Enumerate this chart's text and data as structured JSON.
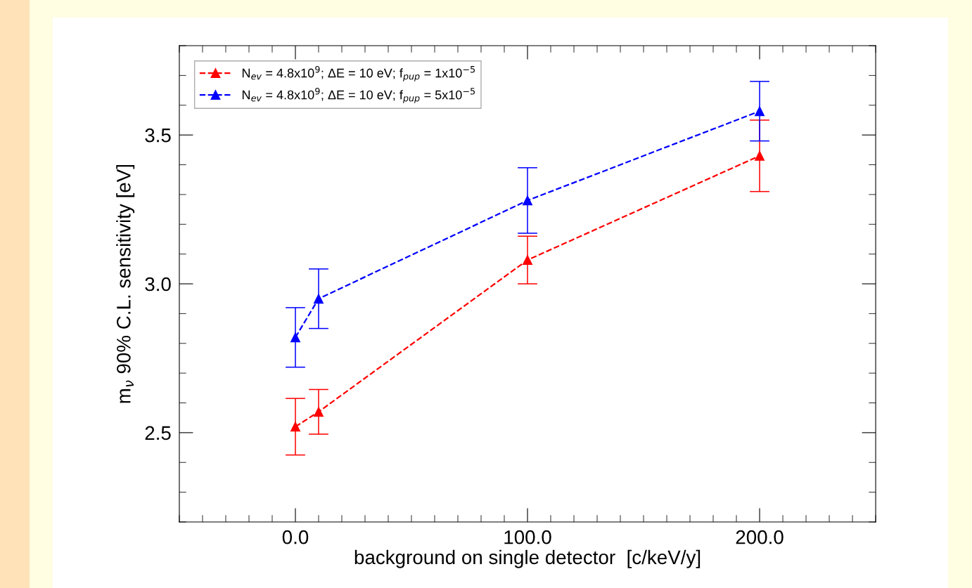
{
  "chart_data": {
    "type": "line",
    "xlabel": "background on single detector  [c/keV/y]",
    "ylabel": "m$_{ν}$ 90% C.L. sensitivity [eV]",
    "x": [
      0,
      10,
      100,
      200
    ],
    "series": [
      {
        "name": "N$_{ev}$ = 4.8x10$^{9}$; ΔE = 10 eV; f$_{pup}$ = 1x10$^{−5}$",
        "color": "#ff0000",
        "values": [
          2.52,
          2.57,
          3.08,
          3.43
        ],
        "errors": [
          0.095,
          0.075,
          0.08,
          0.12
        ]
      },
      {
        "name": "N$_{ev}$ = 4.8x10$^{9}$; ΔE = 10 eV; f$_{pup}$ = 5x10$^{−5}$",
        "color": "#0000ff",
        "values": [
          2.82,
          2.95,
          3.28,
          3.58
        ],
        "errors": [
          0.1,
          0.1,
          0.11,
          0.1
        ]
      }
    ],
    "xlim": [
      -50,
      250
    ],
    "xticks": [
      {
        "value": 0,
        "label": "0.0"
      },
      {
        "value": 100,
        "label": "100.0"
      },
      {
        "value": 200,
        "label": "200.0"
      }
    ],
    "ylim": [
      2.2,
      3.8
    ],
    "yticks": [
      {
        "value": 2.5,
        "label": "2.5"
      },
      {
        "value": 3.0,
        "label": "3.0"
      },
      {
        "value": 3.5,
        "label": "3.5"
      }
    ],
    "marker": "triangle",
    "line_style": "dashed",
    "legend": "top left",
    "grid": false
  }
}
